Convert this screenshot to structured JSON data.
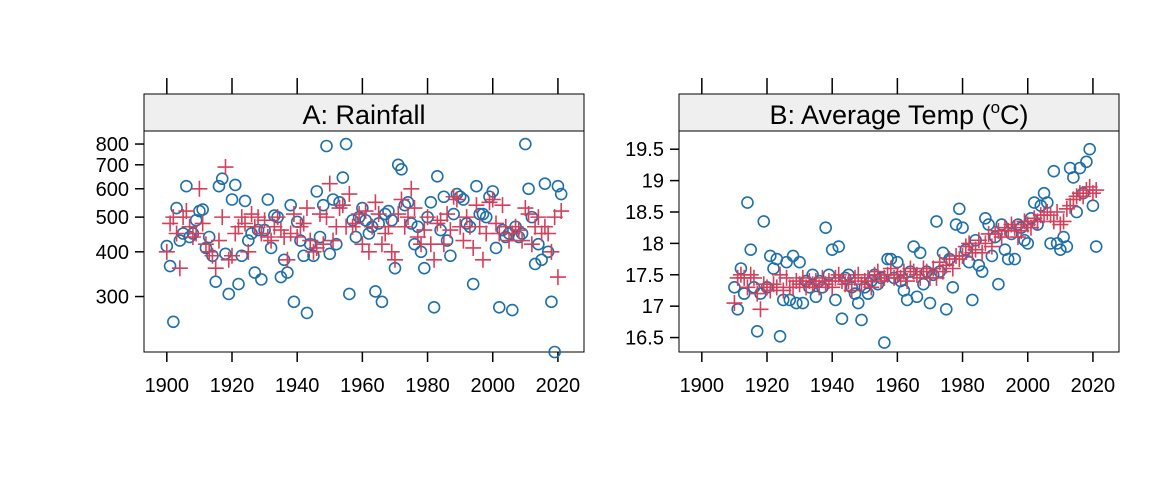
{
  "chart_data": [
    {
      "type": "scatter",
      "title": "A: Rainfall",
      "scale": "log",
      "x_ticks": [
        "1900",
        "1920",
        "1940",
        "1960",
        "1980",
        "2000",
        "2020"
      ],
      "y_ticks": [
        "300",
        "400",
        "500",
        "600",
        "700",
        "800"
      ],
      "xlim": [
        1893,
        2028
      ],
      "ylim": [
        210,
        870
      ],
      "colors": {
        "circle": "#1f6fa8",
        "plus": "#d43f5b"
      },
      "series": [
        {
          "marker": "circle",
          "x": [
            1900,
            1901,
            1902,
            1903,
            1904,
            1905,
            1906,
            1907,
            1908,
            1909,
            1910,
            1911,
            1912,
            1913,
            1914,
            1915,
            1916,
            1917,
            1918,
            1919,
            1920,
            1921,
            1922,
            1923,
            1924,
            1925,
            1926,
            1927,
            1928,
            1929,
            1930,
            1931,
            1932,
            1933,
            1934,
            1935,
            1936,
            1937,
            1938,
            1939,
            1940,
            1941,
            1942,
            1943,
            1944,
            1945,
            1946,
            1947,
            1948,
            1949,
            1950,
            1951,
            1952,
            1953,
            1954,
            1955,
            1956,
            1957,
            1958,
            1959,
            1960,
            1961,
            1962,
            1963,
            1964,
            1965,
            1966,
            1967,
            1968,
            1969,
            1970,
            1971,
            1972,
            1973,
            1974,
            1975,
            1976,
            1977,
            1978,
            1979,
            1980,
            1981,
            1982,
            1983,
            1984,
            1985,
            1986,
            1987,
            1988,
            1989,
            1990,
            1991,
            1992,
            1993,
            1994,
            1995,
            1996,
            1997,
            1998,
            1999,
            2000,
            2001,
            2002,
            2003,
            2004,
            2005,
            2006,
            2007,
            2008,
            2009,
            2010,
            2011,
            2012,
            2013,
            2014,
            2015,
            2016,
            2017,
            2018,
            2019,
            2020,
            2021
          ],
          "y": [
            415,
            365,
            255,
            530,
            430,
            450,
            610,
            440,
            450,
            490,
            520,
            525,
            410,
            440,
            390,
            330,
            610,
            640,
            395,
            305,
            560,
            615,
            325,
            390,
            555,
            430,
            450,
            350,
            460,
            335,
            460,
            560,
            410,
            505,
            500,
            340,
            380,
            350,
            540,
            290,
            485,
            430,
            390,
            270,
            420,
            390,
            590,
            440,
            540,
            790,
            395,
            560,
            420,
            550,
            645,
            800,
            305,
            490,
            440,
            500,
            530,
            490,
            450,
            470,
            310,
            480,
            290,
            510,
            520,
            490,
            360,
            700,
            680,
            540,
            550,
            480,
            420,
            470,
            400,
            360,
            500,
            550,
            280,
            650,
            460,
            570,
            430,
            390,
            510,
            580,
            570,
            560,
            480,
            470,
            325,
            610,
            510,
            510,
            500,
            570,
            590,
            410,
            280,
            460,
            440,
            450,
            275,
            470,
            440,
            450,
            800,
            600,
            500,
            370,
            420,
            380,
            620,
            400,
            290,
            210,
            610,
            580
          ]
        },
        {
          "marker": "plus",
          "x": [
            1900,
            1901,
            1902,
            1903,
            1904,
            1905,
            1906,
            1907,
            1908,
            1909,
            1910,
            1911,
            1912,
            1913,
            1914,
            1915,
            1916,
            1917,
            1918,
            1919,
            1920,
            1921,
            1922,
            1923,
            1924,
            1925,
            1926,
            1927,
            1928,
            1929,
            1930,
            1931,
            1932,
            1933,
            1934,
            1935,
            1936,
            1937,
            1938,
            1939,
            1940,
            1941,
            1942,
            1943,
            1944,
            1945,
            1946,
            1947,
            1948,
            1949,
            1950,
            1951,
            1952,
            1953,
            1954,
            1955,
            1956,
            1957,
            1958,
            1959,
            1960,
            1961,
            1962,
            1963,
            1964,
            1965,
            1966,
            1967,
            1968,
            1969,
            1970,
            1971,
            1972,
            1973,
            1974,
            1975,
            1976,
            1977,
            1978,
            1979,
            1980,
            1981,
            1982,
            1983,
            1984,
            1985,
            1986,
            1987,
            1988,
            1989,
            1990,
            1991,
            1992,
            1993,
            1994,
            1995,
            1996,
            1997,
            1998,
            1999,
            2000,
            2001,
            2002,
            2003,
            2004,
            2005,
            2006,
            2007,
            2008,
            2009,
            2010,
            2011,
            2012,
            2013,
            2014,
            2015,
            2016,
            2017,
            2018,
            2019,
            2020,
            2021
          ],
          "y": [
            400,
            480,
            500,
            450,
            360,
            500,
            520,
            470,
            440,
            450,
            600,
            480,
            420,
            400,
            390,
            360,
            430,
            500,
            690,
            380,
            390,
            450,
            470,
            500,
            480,
            400,
            510,
            470,
            500,
            450,
            490,
            440,
            430,
            470,
            500,
            460,
            440,
            380,
            450,
            510,
            440,
            470,
            480,
            530,
            430,
            400,
            410,
            510,
            420,
            500,
            620,
            430,
            470,
            530,
            540,
            470,
            580,
            470,
            480,
            510,
            420,
            520,
            400,
            470,
            550,
            510,
            420,
            450,
            470,
            400,
            380,
            510,
            560,
            470,
            500,
            600,
            530,
            440,
            420,
            460,
            500,
            420,
            380,
            480,
            490,
            420,
            510,
            460,
            570,
            560,
            470,
            430,
            500,
            470,
            410,
            540,
            470,
            380,
            450,
            550,
            560,
            480,
            450,
            540,
            470,
            430,
            450,
            470,
            460,
            430,
            530,
            510,
            420,
            470,
            500,
            450,
            470,
            450,
            400,
            500,
            340,
            520
          ]
        }
      ]
    },
    {
      "type": "scatter",
      "title_main": "B: Average Temp (",
      "title_sup": "o",
      "title_end": "C)",
      "x_ticks": [
        "1900",
        "1920",
        "1940",
        "1960",
        "1980",
        "2000",
        "2020"
      ],
      "y_ticks": [
        "16.5",
        "17",
        "17.5",
        "18",
        "18.5",
        "19",
        "19.5"
      ],
      "xlim": [
        1893,
        2028
      ],
      "ylim": [
        16.27,
        19.79
      ],
      "colors": {
        "circle": "#1f6fa8",
        "plus": "#d43f5b"
      },
      "series": [
        {
          "marker": "circle",
          "x": [
            1910,
            1911,
            1912,
            1913,
            1914,
            1915,
            1916,
            1917,
            1918,
            1919,
            1920,
            1921,
            1922,
            1923,
            1924,
            1925,
            1926,
            1927,
            1928,
            1929,
            1930,
            1931,
            1932,
            1933,
            1934,
            1935,
            1936,
            1937,
            1938,
            1939,
            1940,
            1941,
            1942,
            1943,
            1944,
            1945,
            1946,
            1947,
            1948,
            1949,
            1950,
            1951,
            1952,
            1953,
            1954,
            1955,
            1956,
            1957,
            1958,
            1959,
            1960,
            1961,
            1962,
            1963,
            1964,
            1965,
            1966,
            1967,
            1968,
            1969,
            1970,
            1971,
            1972,
            1973,
            1974,
            1975,
            1976,
            1977,
            1978,
            1979,
            1980,
            1981,
            1982,
            1983,
            1984,
            1985,
            1986,
            1987,
            1988,
            1989,
            1990,
            1991,
            1992,
            1993,
            1994,
            1995,
            1996,
            1997,
            1998,
            1999,
            2000,
            2001,
            2002,
            2003,
            2004,
            2005,
            2006,
            2007,
            2008,
            2009,
            2010,
            2011,
            2012,
            2013,
            2014,
            2015,
            2016,
            2017,
            2018,
            2019,
            2020,
            2021
          ],
          "y": [
            17.3,
            16.95,
            17.6,
            17.2,
            18.65,
            17.9,
            17.3,
            16.6,
            17.2,
            18.35,
            17.3,
            17.8,
            17.6,
            17.75,
            16.52,
            17.1,
            17.7,
            17.1,
            17.8,
            17.05,
            17.7,
            17.05,
            17.4,
            17.3,
            17.5,
            17.15,
            17.4,
            17.3,
            18.25,
            17.5,
            17.9,
            17.1,
            17.95,
            16.8,
            17.45,
            17.5,
            17.3,
            17.2,
            17.05,
            16.78,
            17.3,
            17.2,
            17.4,
            17.5,
            17.35,
            17.45,
            16.42,
            17.75,
            17.75,
            17.45,
            17.7,
            17.4,
            17.25,
            17.1,
            17.55,
            17.95,
            17.15,
            17.85,
            17.35,
            17.55,
            17.05,
            17.5,
            18.35,
            17.55,
            17.85,
            16.95,
            17.75,
            17.3,
            18.3,
            18.55,
            18.25,
            17.9,
            17.7,
            17.1,
            18.05,
            17.65,
            17.55,
            18.4,
            18.3,
            17.8,
            18.1,
            17.35,
            18.3,
            17.9,
            17.75,
            18.15,
            17.75,
            18.3,
            18.25,
            18.05,
            18.0,
            18.4,
            18.65,
            18.3,
            18.6,
            18.8,
            18.65,
            18.0,
            19.15,
            18.0,
            17.9,
            18.1,
            17.95,
            19.2,
            19.05,
            18.5,
            19.2,
            18.8,
            19.3,
            19.5,
            18.6,
            17.95
          ]
        },
        {
          "marker": "plus",
          "x": [
            1910,
            1911,
            1912,
            1913,
            1914,
            1915,
            1916,
            1917,
            1918,
            1919,
            1920,
            1921,
            1922,
            1923,
            1924,
            1925,
            1926,
            1927,
            1928,
            1929,
            1930,
            1931,
            1932,
            1933,
            1934,
            1935,
            1936,
            1937,
            1938,
            1939,
            1940,
            1941,
            1942,
            1943,
            1944,
            1945,
            1946,
            1947,
            1948,
            1949,
            1950,
            1951,
            1952,
            1953,
            1954,
            1955,
            1956,
            1957,
            1958,
            1959,
            1960,
            1961,
            1962,
            1963,
            1964,
            1965,
            1966,
            1967,
            1968,
            1969,
            1970,
            1971,
            1972,
            1973,
            1974,
            1975,
            1976,
            1977,
            1978,
            1979,
            1980,
            1981,
            1982,
            1983,
            1984,
            1985,
            1986,
            1987,
            1988,
            1989,
            1990,
            1991,
            1992,
            1993,
            1994,
            1995,
            1996,
            1997,
            1998,
            1999,
            2000,
            2001,
            2002,
            2003,
            2004,
            2005,
            2006,
            2007,
            2008,
            2009,
            2010,
            2011,
            2012,
            2013,
            2014,
            2015,
            2016,
            2017,
            2018,
            2019,
            2020,
            2021
          ],
          "y": [
            17.05,
            17.45,
            17.5,
            17.45,
            17.3,
            17.5,
            17.45,
            17.2,
            16.95,
            17.35,
            17.3,
            17.25,
            17.35,
            17.3,
            17.5,
            17.25,
            17.45,
            17.3,
            17.3,
            17.4,
            17.35,
            17.45,
            17.3,
            17.4,
            17.35,
            17.4,
            17.3,
            17.45,
            17.35,
            17.4,
            17.3,
            17.45,
            17.5,
            17.4,
            17.35,
            17.4,
            17.25,
            17.45,
            17.5,
            17.35,
            17.4,
            17.45,
            17.3,
            17.5,
            17.55,
            17.4,
            17.45,
            17.5,
            17.6,
            17.45,
            17.5,
            17.45,
            17.55,
            17.4,
            17.6,
            17.55,
            17.5,
            17.45,
            17.6,
            17.55,
            17.45,
            17.6,
            17.45,
            17.7,
            17.55,
            17.65,
            17.75,
            17.6,
            17.8,
            17.75,
            17.8,
            17.95,
            18.0,
            17.85,
            17.9,
            18.05,
            17.85,
            18.0,
            18.15,
            17.95,
            18.15,
            18.2,
            18.1,
            18.25,
            18.2,
            18.3,
            18.25,
            18.1,
            18.2,
            18.35,
            18.3,
            18.25,
            18.4,
            18.35,
            18.45,
            18.45,
            18.5,
            18.45,
            18.35,
            18.5,
            18.3,
            18.35,
            18.55,
            18.6,
            18.7,
            18.75,
            18.8,
            18.75,
            18.85,
            18.9,
            18.8,
            18.85
          ]
        }
      ]
    }
  ]
}
